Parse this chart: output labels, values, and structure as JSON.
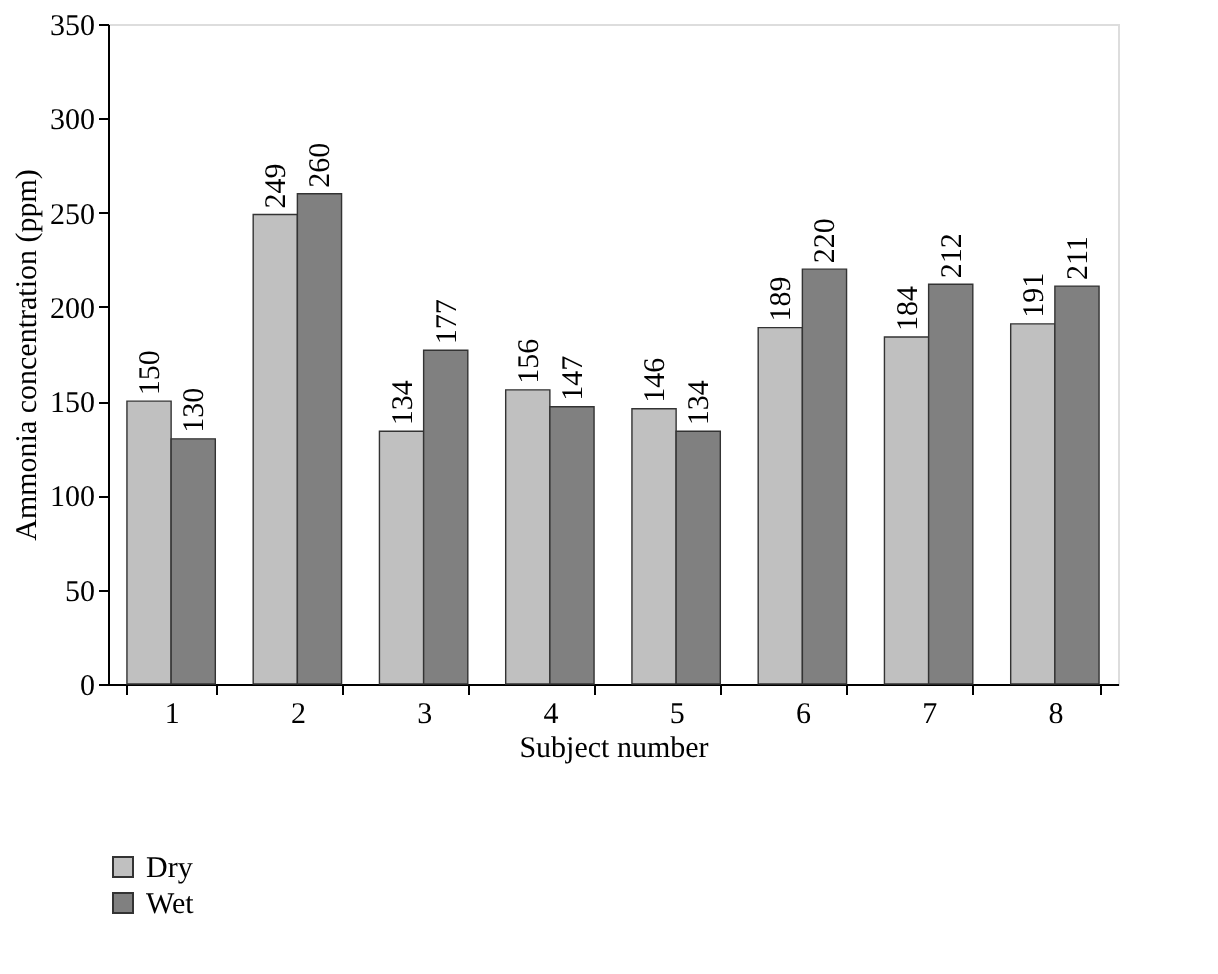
{
  "chart_data": {
    "type": "bar",
    "xlabel": "Subject number",
    "ylabel": "Ammonia concentration (ppm)",
    "categories": [
      "1",
      "2",
      "3",
      "4",
      "5",
      "6",
      "7",
      "8"
    ],
    "series": [
      {
        "name": "Dry",
        "color": "#c0c0c0",
        "values": [
          150,
          249,
          134,
          156,
          146,
          189,
          184,
          191
        ]
      },
      {
        "name": "Wet",
        "color": "#808080",
        "values": [
          130,
          260,
          177,
          147,
          134,
          220,
          212,
          211
        ]
      }
    ],
    "ylim": [
      0,
      350
    ],
    "yticks": [
      0,
      50,
      100,
      150,
      200,
      250,
      300,
      350
    ],
    "data_labels": true,
    "grid": false,
    "legend": "bottom"
  }
}
